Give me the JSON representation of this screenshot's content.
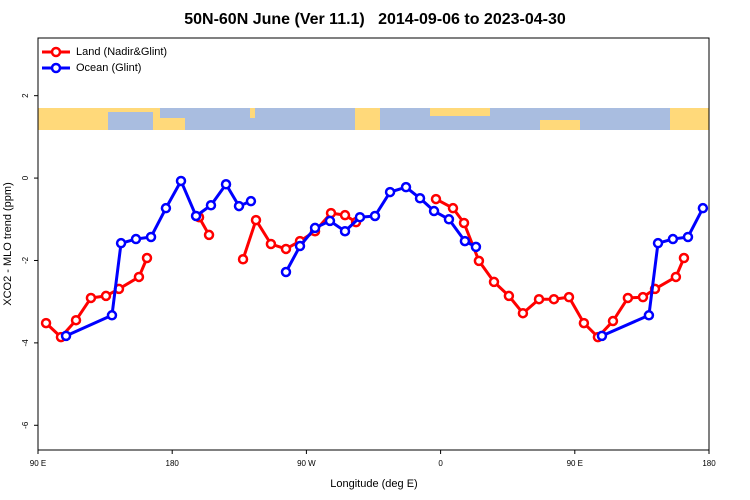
{
  "chart_data": {
    "type": "line",
    "title": "50N-60N June (Ver 11.1)   2014-09-06 to 2023-04-30",
    "xlabel": "Longitude (deg E)",
    "ylabel": "XCO2 - MLO trend (ppm)",
    "xlim": [
      90,
      540
    ],
    "ylim": [
      -6.6,
      3.4
    ],
    "xticks": [
      {
        "value": 90,
        "label": "90 E"
      },
      180,
      {
        "value": 270,
        "label": "90 W"
      },
      0,
      {
        "value": 450,
        "label": "90 E"
      },
      {
        "value": 540,
        "label": "180"
      }
    ],
    "yticks": [
      2,
      0,
      -2,
      -4,
      -6
    ],
    "legend": "top-left",
    "series": [
      {
        "name": "Land (Nadir&Glint)",
        "color": "#ff0000",
        "x": [
          95.4,
          105.4,
          115.5,
          125.5,
          135.6,
          144.3,
          157.7,
          163.1,
          null,
          198.0,
          204.7,
          null,
          227.5,
          236.2,
          246.2,
          256.3,
          265.7,
          275.8,
          286.5,
          295.9,
          303.3,
          null,
          356.9,
          368.3,
          375.7,
          385.7,
          395.8,
          405.8,
          415.2,
          426.0,
          436.0,
          446.1,
          456.1,
          465.5,
          475.6,
          485.6,
          495.7,
          503.8,
          517.8,
          523.2
        ],
        "values": [
          -3.52,
          -3.86,
          -3.45,
          -2.91,
          -2.86,
          -2.69,
          -2.4,
          -1.94,
          null,
          -0.95,
          -1.38,
          null,
          -1.97,
          -1.02,
          -1.6,
          -1.72,
          -1.53,
          -1.29,
          -0.85,
          -0.9,
          -1.07,
          null,
          -0.51,
          -0.73,
          -1.09,
          -2.01,
          -2.52,
          -2.86,
          -3.28,
          -2.94,
          -2.94,
          -2.89,
          -3.52,
          -3.86,
          -3.47,
          -2.91,
          -2.89,
          -2.69,
          -2.4,
          -1.94
        ]
      },
      {
        "name": "Ocean (Glint)",
        "color": "#0000ff",
        "x": [
          108.8,
          139.6,
          145.7,
          155.7,
          165.8,
          175.8,
          185.9,
          196.0,
          206.0,
          216.1,
          224.8,
          232.8,
          null,
          256.3,
          265.7,
          275.8,
          285.8,
          295.9,
          305.9,
          316.0,
          326.1,
          336.8,
          346.2,
          355.6,
          365.6,
          376.3,
          383.7,
          null,
          468.2,
          499.7,
          505.8,
          515.8,
          525.9,
          535.9
        ],
        "values": [
          -3.83,
          -3.33,
          -1.58,
          -1.48,
          -1.43,
          -0.73,
          -0.07,
          -0.92,
          -0.66,
          -0.15,
          -0.68,
          -0.56,
          null,
          -2.28,
          -1.65,
          -1.21,
          -1.04,
          -1.29,
          -0.95,
          -0.92,
          -0.34,
          -0.22,
          -0.49,
          -0.8,
          -1.0,
          -1.53,
          -1.67,
          null,
          -3.83,
          -3.33,
          -1.58,
          -1.48,
          -1.43,
          -0.73
        ]
      }
    ]
  }
}
